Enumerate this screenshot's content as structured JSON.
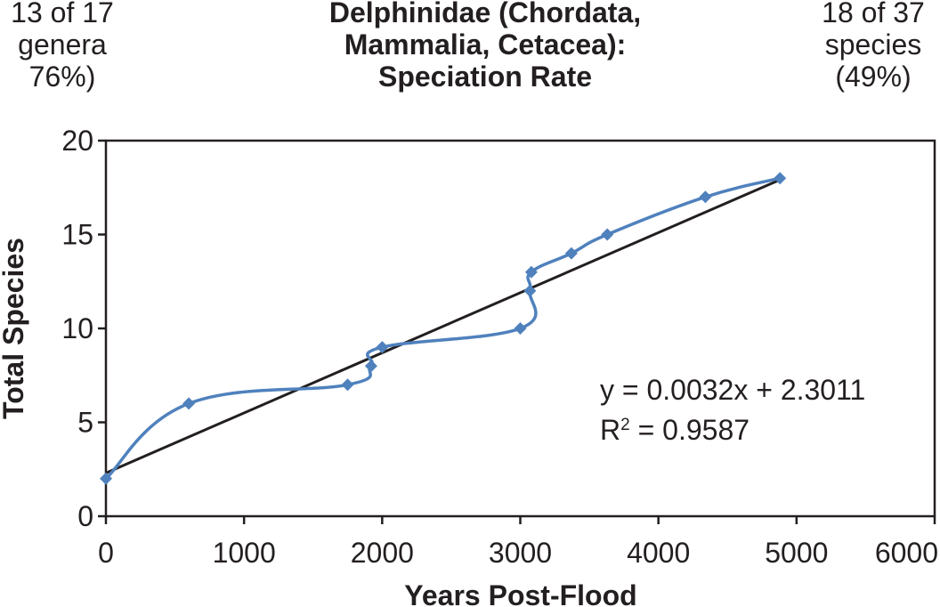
{
  "notes": {
    "left": [
      "13 of 17",
      "genera",
      "76%)"
    ],
    "right": [
      "18 of 37",
      "species",
      "(49%)"
    ]
  },
  "chart_data": {
    "type": "scatter",
    "title": [
      "Delphinidae (Chordata,",
      "Mammalia, Cetacea):",
      "Speciation Rate"
    ],
    "xlabel": "Years Post-Flood",
    "ylabel": "Total Species",
    "xlim": [
      0,
      6000
    ],
    "ylim": [
      0,
      20
    ],
    "x_ticks": [
      "0",
      "1000",
      "2000",
      "3000",
      "4000",
      "5000",
      "6000"
    ],
    "y_ticks": [
      "0",
      "5",
      "10",
      "15",
      "20"
    ],
    "grid": false,
    "series": [
      {
        "color": "#4f81bd",
        "marker": "diamond",
        "smooth": true,
        "points": [
          [
            0,
            2
          ],
          [
            600,
            6
          ],
          [
            1750,
            7
          ],
          [
            1920,
            8
          ],
          [
            2000,
            9
          ],
          [
            3000,
            10
          ],
          [
            3070,
            12
          ],
          [
            3080,
            13
          ],
          [
            3370,
            14
          ],
          [
            3630,
            15
          ],
          [
            4340,
            17
          ],
          [
            4880,
            18
          ]
        ]
      }
    ],
    "trendline": {
      "color": "#231f20",
      "slope": 0.0032,
      "intercept": 2.3011,
      "x_range": [
        0,
        4880
      ],
      "equation": "y = 0.0032x + 2.3011",
      "r2_label": "R",
      "r2_sup": "2",
      "r2_value": " = 0.9587"
    }
  }
}
